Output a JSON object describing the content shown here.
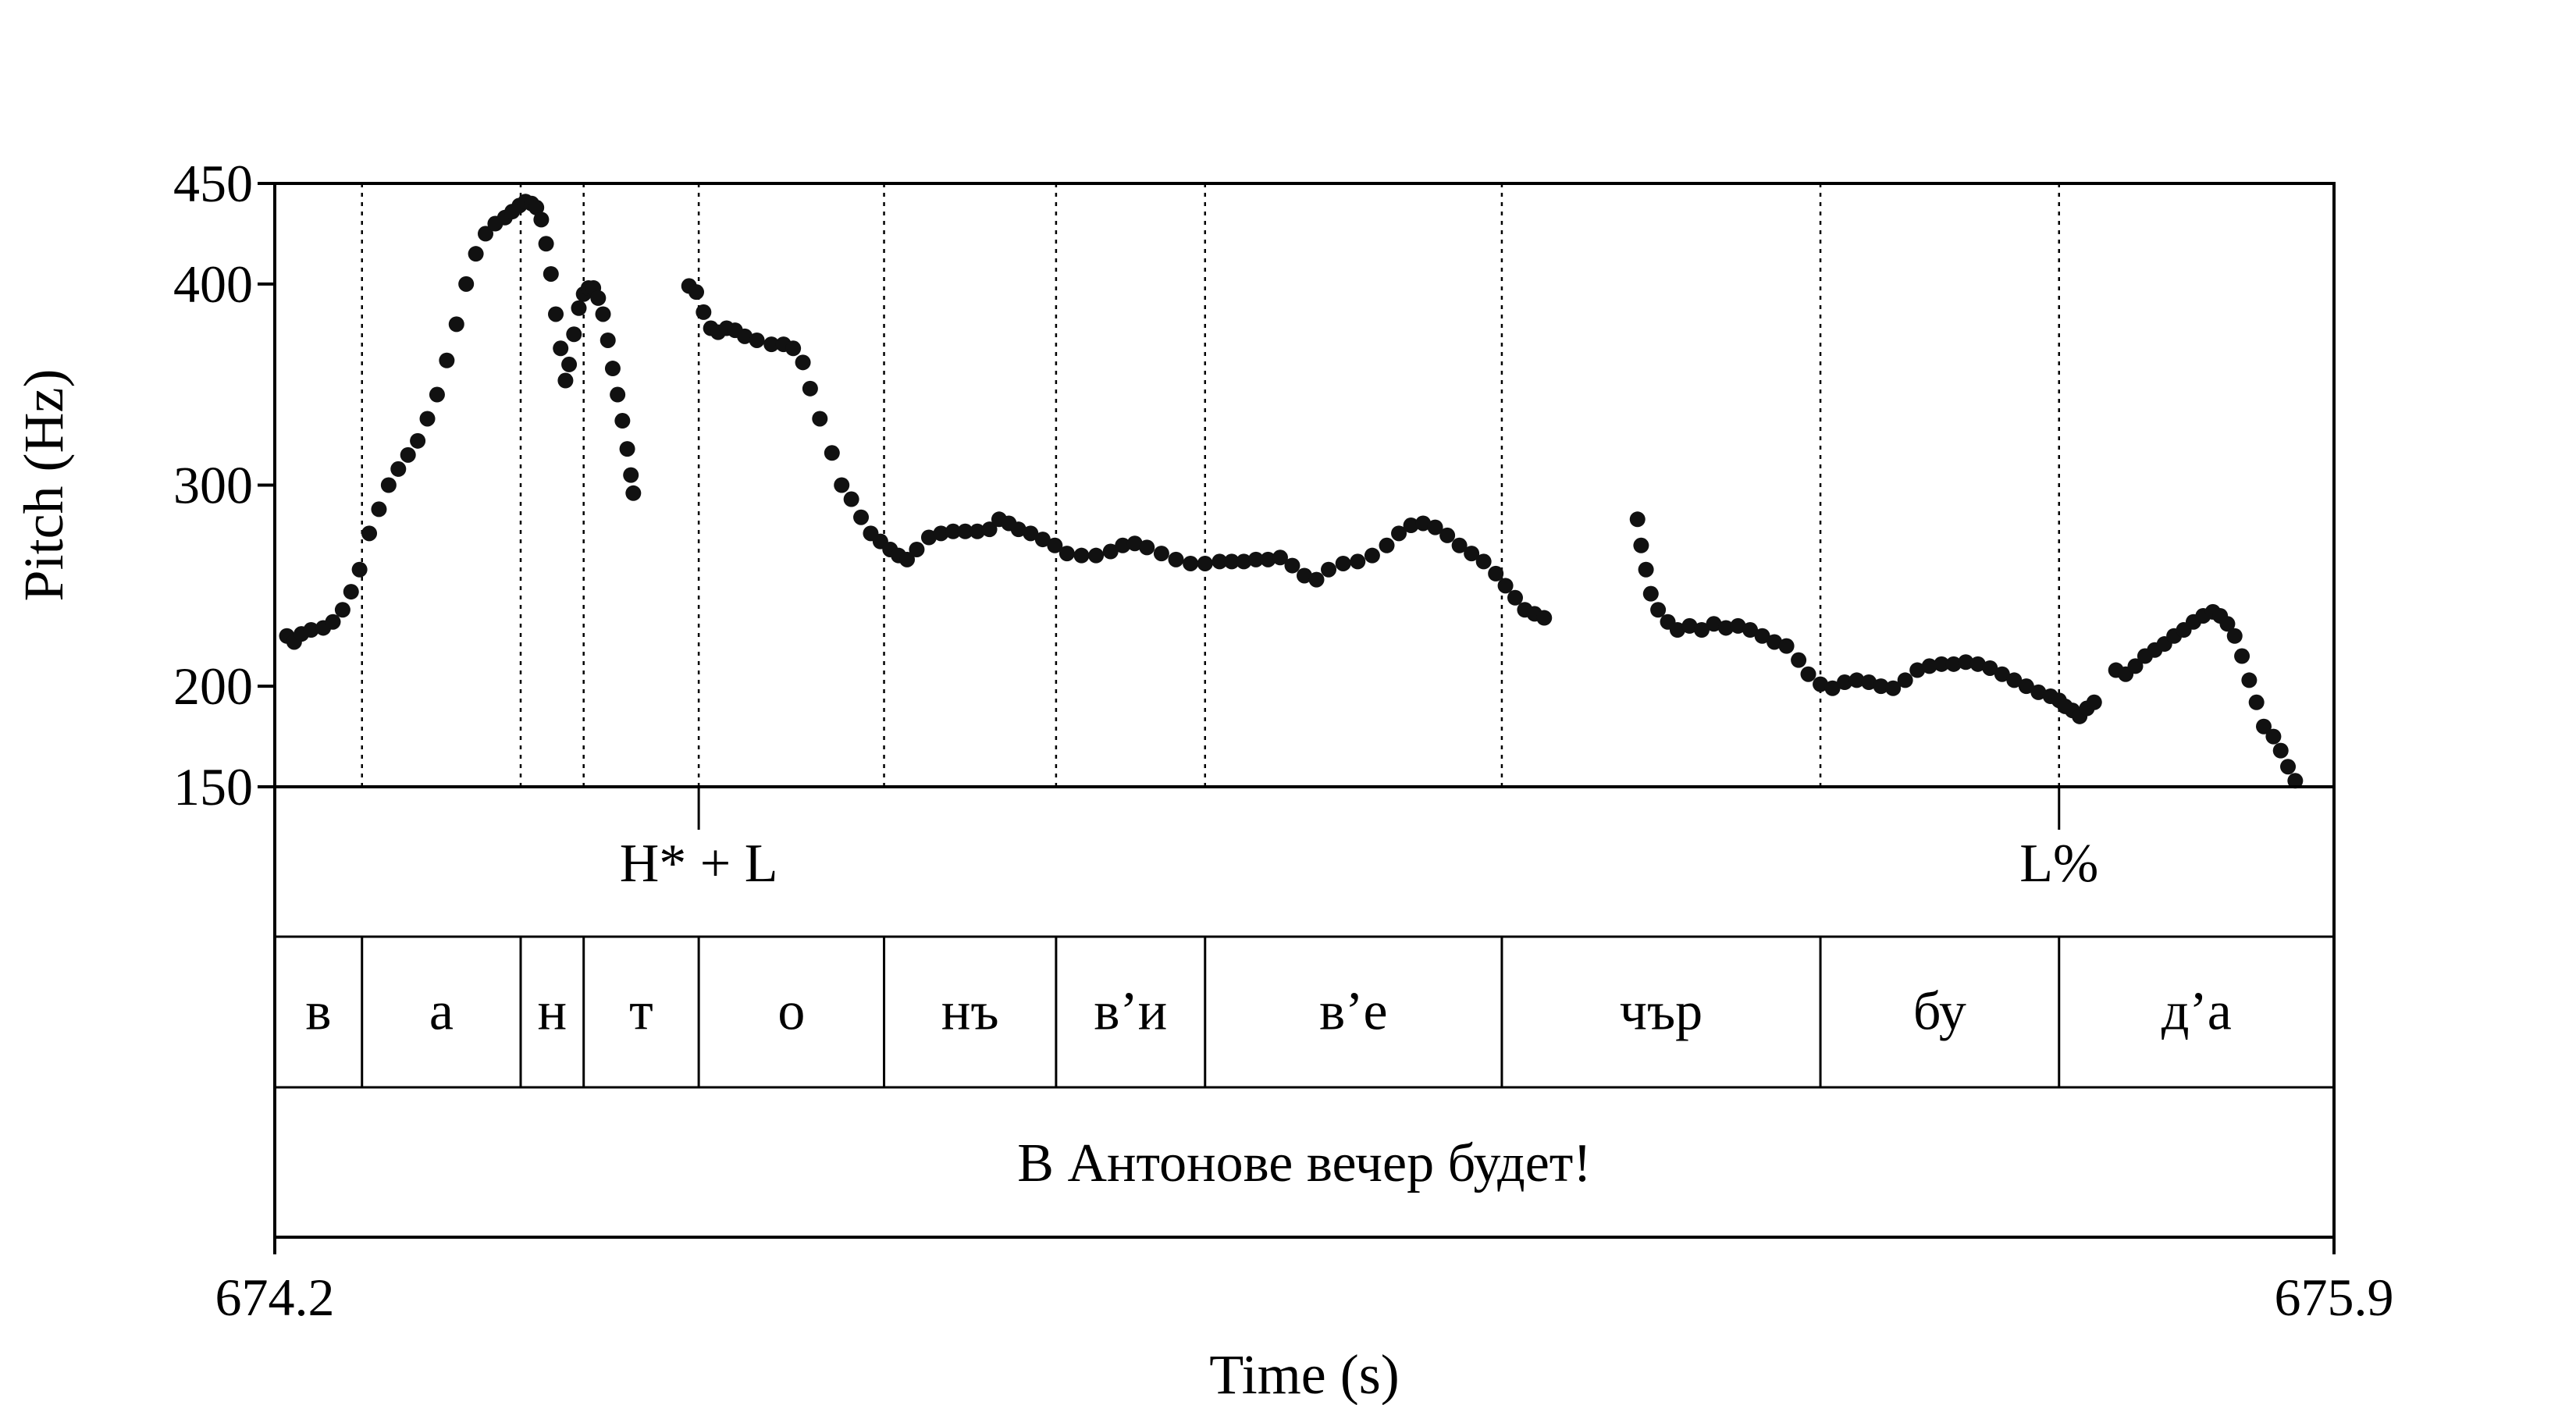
{
  "chart_data": {
    "type": "scatter",
    "xlabel": "Time (s)",
    "ylabel": "Pitch (Hz)",
    "xlim": [
      674.2,
      675.9
    ],
    "ylim": [
      150,
      450
    ],
    "x_ticks": [
      "674.2",
      "675.9"
    ],
    "y_ticks": [
      {
        "value": 450,
        "label": "450"
      },
      {
        "value": 400,
        "label": "400"
      },
      {
        "value": 300,
        "label": "300"
      },
      {
        "value": 200,
        "label": "200"
      },
      {
        "value": 150,
        "label": "150"
      }
    ],
    "segment_boundaries": [
      674.272,
      674.403,
      674.455,
      674.55,
      674.703,
      674.845,
      674.968,
      675.213,
      675.476,
      675.673
    ],
    "series": [
      {
        "points": [
          [
            674.21,
            225
          ],
          [
            674.216,
            222
          ],
          [
            674.222,
            226
          ],
          [
            674.23,
            228
          ],
          [
            674.24,
            229
          ],
          [
            674.248,
            232
          ],
          [
            674.256,
            238
          ],
          [
            674.263,
            247
          ],
          [
            674.27,
            258
          ],
          [
            674.278,
            276
          ],
          [
            674.286,
            288
          ],
          [
            674.294,
            300
          ],
          [
            674.302,
            308
          ],
          [
            674.31,
            315
          ],
          [
            674.318,
            322
          ],
          [
            674.326,
            333
          ],
          [
            674.334,
            345
          ],
          [
            674.342,
            362
          ],
          [
            674.35,
            380
          ],
          [
            674.358,
            400
          ],
          [
            674.366,
            415
          ],
          [
            674.374,
            425
          ],
          [
            674.382,
            430
          ],
          [
            674.39,
            433
          ],
          [
            674.396,
            436
          ],
          [
            674.402,
            439
          ],
          [
            674.407,
            441
          ],
          [
            674.412,
            440
          ],
          [
            674.416,
            438
          ],
          [
            674.42,
            432
          ],
          [
            674.424,
            420
          ],
          [
            674.428,
            405
          ],
          [
            674.432,
            385
          ],
          [
            674.436,
            368
          ],
          [
            674.44,
            352
          ],
          [
            674.443,
            360
          ],
          [
            674.447,
            375
          ],
          [
            674.451,
            388
          ],
          [
            674.455,
            395
          ],
          [
            674.459,
            398
          ],
          [
            674.463,
            398
          ],
          [
            674.467,
            393
          ],
          [
            674.471,
            385
          ],
          [
            674.475,
            372
          ],
          [
            674.479,
            358
          ],
          [
            674.483,
            345
          ],
          [
            674.487,
            332
          ],
          [
            674.491,
            318
          ],
          [
            674.494,
            305
          ],
          [
            674.496,
            296
          ],
          [
            674.542,
            399
          ],
          [
            674.548,
            396
          ],
          [
            674.554,
            386
          ],
          [
            674.56,
            378
          ],
          [
            674.566,
            376
          ],
          [
            674.573,
            378
          ],
          [
            674.58,
            377
          ],
          [
            674.588,
            374
          ],
          [
            674.598,
            372
          ],
          [
            674.61,
            370
          ],
          [
            674.62,
            370
          ],
          [
            674.628,
            368
          ],
          [
            674.636,
            361
          ],
          [
            674.642,
            348
          ],
          [
            674.65,
            333
          ],
          [
            674.66,
            316
          ],
          [
            674.668,
            300
          ],
          [
            674.676,
            293
          ],
          [
            674.684,
            284
          ],
          [
            674.692,
            276
          ],
          [
            674.7,
            272
          ],
          [
            674.708,
            268
          ],
          [
            674.715,
            265
          ],
          [
            674.722,
            263
          ],
          [
            674.73,
            268
          ],
          [
            674.74,
            274
          ],
          [
            674.75,
            276
          ],
          [
            674.76,
            277
          ],
          [
            674.77,
            277
          ],
          [
            674.78,
            277
          ],
          [
            674.79,
            278
          ],
          [
            674.798,
            283
          ],
          [
            674.806,
            281
          ],
          [
            674.814,
            278
          ],
          [
            674.824,
            276
          ],
          [
            674.834,
            273
          ],
          [
            674.844,
            270
          ],
          [
            674.854,
            266
          ],
          [
            674.866,
            265
          ],
          [
            674.878,
            265
          ],
          [
            674.89,
            267
          ],
          [
            674.9,
            270
          ],
          [
            674.91,
            271
          ],
          [
            674.92,
            269
          ],
          [
            674.932,
            266
          ],
          [
            674.944,
            263
          ],
          [
            674.956,
            261
          ],
          [
            674.968,
            261
          ],
          [
            674.98,
            262
          ],
          [
            674.99,
            262
          ],
          [
            675.0,
            262
          ],
          [
            675.01,
            263
          ],
          [
            675.02,
            263
          ],
          [
            675.03,
            264
          ],
          [
            675.04,
            260
          ],
          [
            675.05,
            255
          ],
          [
            675.06,
            253
          ],
          [
            675.07,
            258
          ],
          [
            675.082,
            261
          ],
          [
            675.094,
            262
          ],
          [
            675.106,
            265
          ],
          [
            675.118,
            270
          ],
          [
            675.128,
            276
          ],
          [
            675.138,
            280
          ],
          [
            675.148,
            281
          ],
          [
            675.158,
            279
          ],
          [
            675.168,
            275
          ],
          [
            675.178,
            270
          ],
          [
            675.188,
            266
          ],
          [
            675.198,
            262
          ],
          [
            675.208,
            256
          ],
          [
            675.216,
            250
          ],
          [
            675.224,
            244
          ],
          [
            675.232,
            238
          ],
          [
            675.24,
            236
          ],
          [
            675.248,
            234
          ],
          [
            675.325,
            283
          ],
          [
            675.328,
            270
          ],
          [
            675.332,
            258
          ],
          [
            675.336,
            246
          ],
          [
            675.342,
            238
          ],
          [
            675.35,
            232
          ],
          [
            675.358,
            228
          ],
          [
            675.368,
            230
          ],
          [
            675.378,
            228
          ],
          [
            675.388,
            231
          ],
          [
            675.398,
            229
          ],
          [
            675.408,
            230
          ],
          [
            675.418,
            228
          ],
          [
            675.428,
            225
          ],
          [
            675.438,
            222
          ],
          [
            675.448,
            220
          ],
          [
            675.458,
            213
          ],
          [
            675.466,
            206
          ],
          [
            675.476,
            201
          ],
          [
            675.486,
            199
          ],
          [
            675.496,
            202
          ],
          [
            675.506,
            203
          ],
          [
            675.516,
            202
          ],
          [
            675.526,
            200
          ],
          [
            675.536,
            199
          ],
          [
            675.546,
            203
          ],
          [
            675.556,
            208
          ],
          [
            675.566,
            210
          ],
          [
            675.576,
            211
          ],
          [
            675.586,
            211
          ],
          [
            675.596,
            212
          ],
          [
            675.606,
            211
          ],
          [
            675.616,
            209
          ],
          [
            675.626,
            206
          ],
          [
            675.636,
            203
          ],
          [
            675.646,
            200
          ],
          [
            675.656,
            197
          ],
          [
            675.666,
            195
          ],
          [
            675.673,
            193
          ],
          [
            675.678,
            190
          ],
          [
            675.684,
            188
          ],
          [
            675.69,
            185
          ],
          [
            675.696,
            189
          ],
          [
            675.702,
            192
          ],
          [
            675.72,
            208
          ],
          [
            675.728,
            206
          ],
          [
            675.736,
            210
          ],
          [
            675.744,
            215
          ],
          [
            675.752,
            218
          ],
          [
            675.76,
            221
          ],
          [
            675.768,
            225
          ],
          [
            675.776,
            228
          ],
          [
            675.784,
            232
          ],
          [
            675.792,
            235
          ],
          [
            675.8,
            237
          ],
          [
            675.806,
            235
          ],
          [
            675.812,
            231
          ],
          [
            675.818,
            225
          ],
          [
            675.824,
            215
          ],
          [
            675.83,
            203
          ],
          [
            675.836,
            192
          ],
          [
            675.842,
            180
          ],
          [
            675.85,
            175
          ],
          [
            675.856,
            168
          ],
          [
            675.862,
            160
          ],
          [
            675.868,
            153
          ]
        ]
      }
    ]
  },
  "tiers": {
    "tones": [
      {
        "label": "H* + L",
        "time": 674.55
      },
      {
        "label": "L%",
        "time": 675.673
      }
    ],
    "segments": [
      {
        "label": "в",
        "start": 674.2,
        "end": 674.272
      },
      {
        "label": "а",
        "start": 674.272,
        "end": 674.403
      },
      {
        "label": "н",
        "start": 674.403,
        "end": 674.455
      },
      {
        "label": "т",
        "start": 674.455,
        "end": 674.55
      },
      {
        "label": "о",
        "start": 674.55,
        "end": 674.703
      },
      {
        "label": "нъ",
        "start": 674.703,
        "end": 674.845
      },
      {
        "label": "в’и",
        "start": 674.845,
        "end": 674.968
      },
      {
        "label": "в’е",
        "start": 674.968,
        "end": 675.213
      },
      {
        "label": "чър",
        "start": 675.213,
        "end": 675.476
      },
      {
        "label": "бу",
        "start": 675.476,
        "end": 675.673
      },
      {
        "label": "д’а",
        "start": 675.673,
        "end": 675.9
      }
    ],
    "sentence": "В Антонове вечер будет!"
  }
}
